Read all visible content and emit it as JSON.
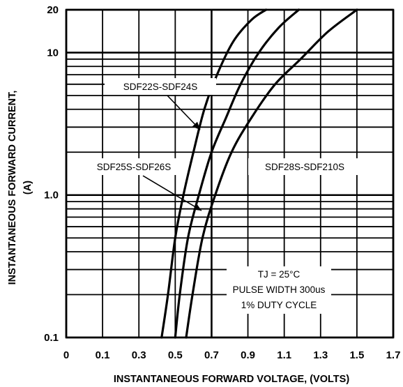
{
  "chart_data": {
    "type": "line",
    "title": "",
    "xlabel": "INSTANTANEOUS FORWARD VOLTAGE, (VOLTS)",
    "ylabel": "INSTANTANEOUS FORWARD CURRENT,",
    "ylabel_unit": "(A)",
    "xlim": [
      0,
      1.7
    ],
    "ylim": [
      0.1,
      20
    ],
    "y_scale": "log",
    "grid": true,
    "x_ticks": [
      0,
      0.1,
      0.3,
      0.5,
      0.7,
      0.9,
      1.1,
      1.3,
      1.5,
      1.7
    ],
    "x_tick_labels": [
      "0",
      "0.1",
      "0.3",
      "0.5",
      "0.7",
      "0.9",
      "1.1",
      "1.3",
      "1.5",
      "1.7"
    ],
    "y_tick_values": [
      0.1,
      1,
      10,
      20
    ],
    "y_tick_labels": [
      "0.1",
      "1.0",
      "10",
      "20"
    ],
    "series": [
      {
        "name": "SDF22S-SDF24S",
        "x": [
          0.425,
          0.46,
          0.5,
          0.545,
          0.6,
          0.66,
          0.73,
          0.82,
          0.92,
          1.0
        ],
        "y": [
          0.1,
          0.2,
          0.5,
          1.0,
          2.0,
          4.0,
          7.0,
          12.0,
          17.0,
          20.0
        ]
      },
      {
        "name": "SDF25S-SDF26S",
        "x": [
          0.5,
          0.525,
          0.57,
          0.63,
          0.7,
          0.78,
          0.86,
          0.96,
          1.07,
          1.18
        ],
        "y": [
          0.1,
          0.2,
          0.5,
          1.0,
          2.0,
          3.5,
          6.0,
          10.0,
          15.0,
          20.0
        ]
      },
      {
        "name": "SDF28S-SDF210S",
        "x": [
          0.56,
          0.595,
          0.65,
          0.72,
          0.81,
          0.92,
          1.05,
          1.19,
          1.34,
          1.5
        ],
        "y": [
          0.1,
          0.2,
          0.5,
          1.0,
          2.0,
          3.5,
          6.0,
          9.0,
          14.0,
          20.0
        ]
      }
    ],
    "annotations": {
      "label_a": "SDF22S-SDF24S",
      "label_b": "SDF25S-SDF26S",
      "label_c": "SDF28S-SDF210S",
      "conditions": [
        "TJ = 25°C",
        "PULSE WIDTH 300us",
        "1% DUTY CYCLE"
      ]
    }
  }
}
